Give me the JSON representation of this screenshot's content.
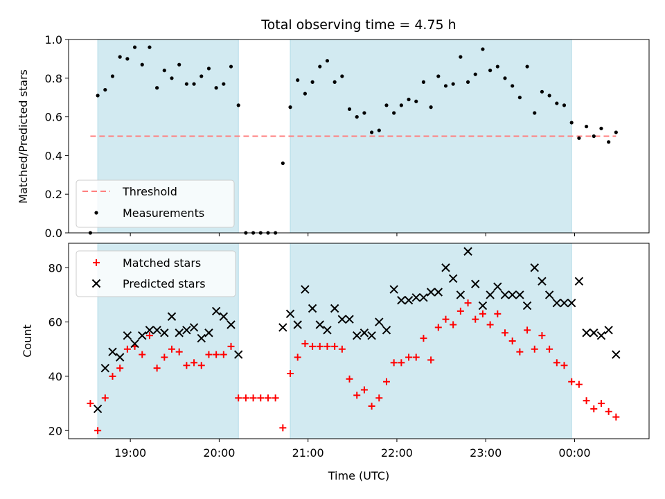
{
  "title": "Total observing time = 4.75 h",
  "colors": {
    "shade": "#add8e6",
    "threshold": "#ff7f7f",
    "matched": "#ff0000",
    "predicted": "#000000",
    "measurement": "#000000"
  },
  "chart_data": [
    {
      "type": "scatter",
      "panel": "top",
      "ylabel": "Matched/Predicted stars",
      "ylim": [
        0.0,
        1.0
      ],
      "yticks": [
        "0.0",
        "0.2",
        "0.4",
        "0.6",
        "0.8",
        "1.0"
      ],
      "threshold": {
        "label": "Threshold",
        "value": 0.5
      },
      "series": [
        {
          "name": "Measurements",
          "x": [
            "18:33",
            "18:38",
            "18:43",
            "18:48",
            "18:53",
            "18:58",
            "19:03",
            "19:08",
            "19:13",
            "19:18",
            "19:23",
            "19:28",
            "19:33",
            "19:38",
            "19:43",
            "19:48",
            "19:53",
            "19:58",
            "20:03",
            "20:08",
            "20:13",
            "20:18",
            "20:23",
            "20:28",
            "20:33",
            "20:38",
            "20:43",
            "20:48",
            "20:53",
            "20:58",
            "21:03",
            "21:08",
            "21:13",
            "21:18",
            "21:23",
            "21:28",
            "21:33",
            "21:38",
            "21:43",
            "21:48",
            "21:53",
            "21:58",
            "22:03",
            "22:08",
            "22:13",
            "22:18",
            "22:23",
            "22:28",
            "22:33",
            "22:38",
            "22:43",
            "22:48",
            "22:53",
            "22:58",
            "23:03",
            "23:08",
            "23:13",
            "23:18",
            "23:23",
            "23:28",
            "23:33",
            "23:38",
            "23:43",
            "23:48",
            "23:53",
            "23:58",
            "00:03",
            "00:08",
            "00:13",
            "00:18",
            "00:23",
            "00:28"
          ],
          "y": [
            0.0,
            0.71,
            0.74,
            0.81,
            0.91,
            0.9,
            0.96,
            0.87,
            0.96,
            0.75,
            0.84,
            0.8,
            0.87,
            0.77,
            0.77,
            0.81,
            0.85,
            0.75,
            0.77,
            0.86,
            0.66,
            0.0,
            0.0,
            0.0,
            0.0,
            0.0,
            0.36,
            0.65,
            0.79,
            0.72,
            0.78,
            0.86,
            0.89,
            0.78,
            0.81,
            0.64,
            0.6,
            0.62,
            0.52,
            0.53,
            0.66,
            0.62,
            0.66,
            0.69,
            0.68,
            0.78,
            0.65,
            0.81,
            0.76,
            0.77,
            0.91,
            0.78,
            0.82,
            0.95,
            0.84,
            0.86,
            0.8,
            0.76,
            0.7,
            0.86,
            0.62,
            0.73,
            0.71,
            0.67,
            0.66,
            0.57,
            0.49,
            0.55,
            0.5,
            0.54,
            0.47,
            0.52
          ]
        }
      ],
      "legend": [
        "Threshold",
        "Measurements"
      ],
      "legend_position": "lower-left",
      "shaded_intervals": [
        [
          "18:38",
          "20:13"
        ],
        [
          "20:48",
          "23:58"
        ]
      ]
    },
    {
      "type": "scatter",
      "panel": "bottom",
      "ylabel": "Count",
      "xlabel": "Time (UTC)",
      "ylim": [
        17,
        89
      ],
      "yticks": [
        "20",
        "40",
        "60",
        "80"
      ],
      "xticks": [
        "19:00",
        "20:00",
        "21:00",
        "22:00",
        "23:00",
        "00:00"
      ],
      "x": [
        "18:33",
        "18:38",
        "18:43",
        "18:48",
        "18:53",
        "18:58",
        "19:03",
        "19:08",
        "19:13",
        "19:18",
        "19:23",
        "19:28",
        "19:33",
        "19:38",
        "19:43",
        "19:48",
        "19:53",
        "19:58",
        "20:03",
        "20:08",
        "20:13",
        "20:18",
        "20:23",
        "20:28",
        "20:33",
        "20:38",
        "20:43",
        "20:48",
        "20:53",
        "20:58",
        "21:03",
        "21:08",
        "21:13",
        "21:18",
        "21:23",
        "21:28",
        "21:33",
        "21:38",
        "21:43",
        "21:48",
        "21:53",
        "21:58",
        "22:03",
        "22:08",
        "22:13",
        "22:18",
        "22:23",
        "22:28",
        "22:33",
        "22:38",
        "22:43",
        "22:48",
        "22:53",
        "22:58",
        "23:03",
        "23:08",
        "23:13",
        "23:18",
        "23:23",
        "23:28",
        "23:33",
        "23:38",
        "23:43",
        "23:48",
        "23:53",
        "23:58",
        "00:03",
        "00:08",
        "00:13",
        "00:18",
        "00:23",
        "00:28"
      ],
      "series": [
        {
          "name": "Matched stars",
          "y": [
            30,
            20,
            32,
            40,
            43,
            50,
            51,
            48,
            55,
            43,
            47,
            50,
            49,
            44,
            45,
            44,
            48,
            48,
            48,
            51,
            32,
            32,
            32,
            32,
            32,
            32,
            21,
            41,
            47,
            52,
            51,
            51,
            51,
            51,
            50,
            39,
            33,
            35,
            29,
            32,
            38,
            45,
            45,
            47,
            47,
            54,
            46,
            58,
            61,
            59,
            64,
            67,
            61,
            63,
            59,
            63,
            56,
            53,
            49,
            57,
            50,
            55,
            50,
            45,
            44,
            38,
            37,
            31,
            28,
            30,
            27,
            25
          ]
        },
        {
          "name": "Predicted stars",
          "y": [
            null,
            28,
            43,
            49,
            47,
            55,
            52,
            55,
            57,
            57,
            56,
            62,
            56,
            57,
            58,
            54,
            56,
            64,
            62,
            59,
            48,
            null,
            null,
            null,
            null,
            null,
            58,
            63,
            59,
            72,
            65,
            59,
            57,
            65,
            61,
            61,
            55,
            56,
            55,
            60,
            57,
            72,
            68,
            68,
            69,
            69,
            71,
            71,
            80,
            76,
            70,
            86,
            74,
            66,
            70,
            73,
            70,
            70,
            70,
            66,
            80,
            75,
            70,
            67,
            67,
            67,
            75,
            56,
            56,
            55,
            57,
            48
          ]
        }
      ],
      "legend": [
        "Matched stars",
        "Predicted stars"
      ],
      "legend_position": "upper-left",
      "shaded_intervals": [
        [
          "18:38",
          "20:13"
        ],
        [
          "20:48",
          "23:58"
        ]
      ]
    }
  ]
}
